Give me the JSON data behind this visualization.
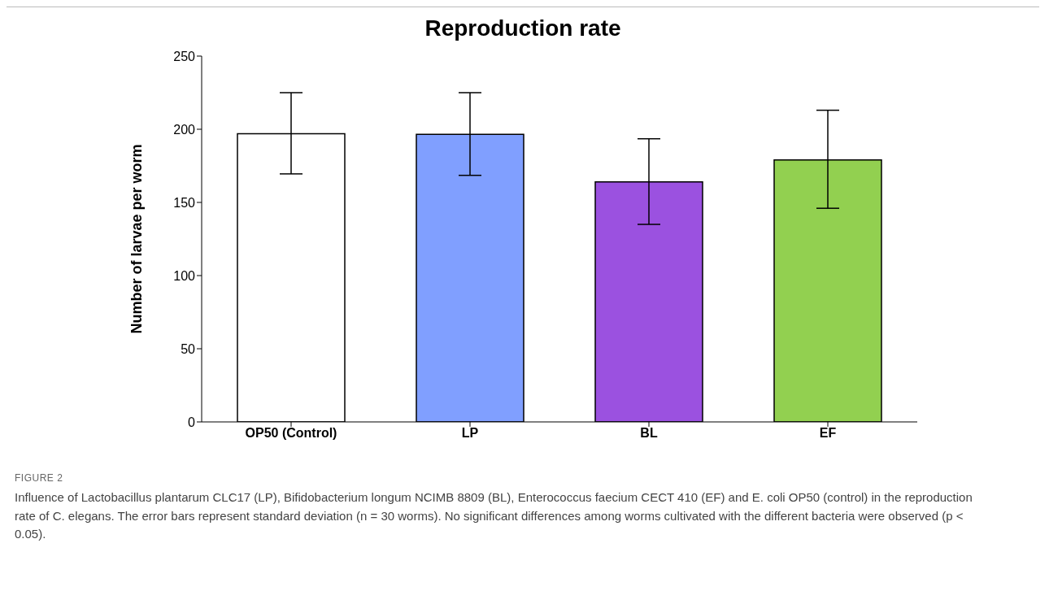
{
  "chart_data": {
    "type": "bar",
    "title": "Reproduction rate",
    "ylabel": "Number of larvae per worm",
    "categories": [
      "OP50 (Control)",
      "LP",
      "BL",
      "EF"
    ],
    "values": [
      197,
      196.5,
      164,
      179
    ],
    "colors": [
      "#ffffff",
      "#809fff",
      "#9b51e0",
      "#92d050"
    ],
    "errors": [
      [
        169.5,
        225
      ],
      [
        168.5,
        225
      ],
      [
        135,
        193.5
      ],
      [
        146,
        213
      ]
    ],
    "ylim": [
      0,
      250
    ],
    "yticks": [
      0,
      50,
      100,
      150,
      200,
      250
    ],
    "grid": false,
    "legend": false,
    "annotations": [
      "FIGURE 2",
      "Influence of Lactobacillus plantarum CLC17 (LP), Bifidobacterium longum NCIMB 8809 (BL), Enterococcus faecium CECT 410 (EF) and E. coli OP50 (control) in the reproduction rate of C. elegans. The error bars represent standard deviation (n = 30 worms). No significant differences among worms cultivated with the different bacteria were observed (p < 0.05)."
    ]
  }
}
